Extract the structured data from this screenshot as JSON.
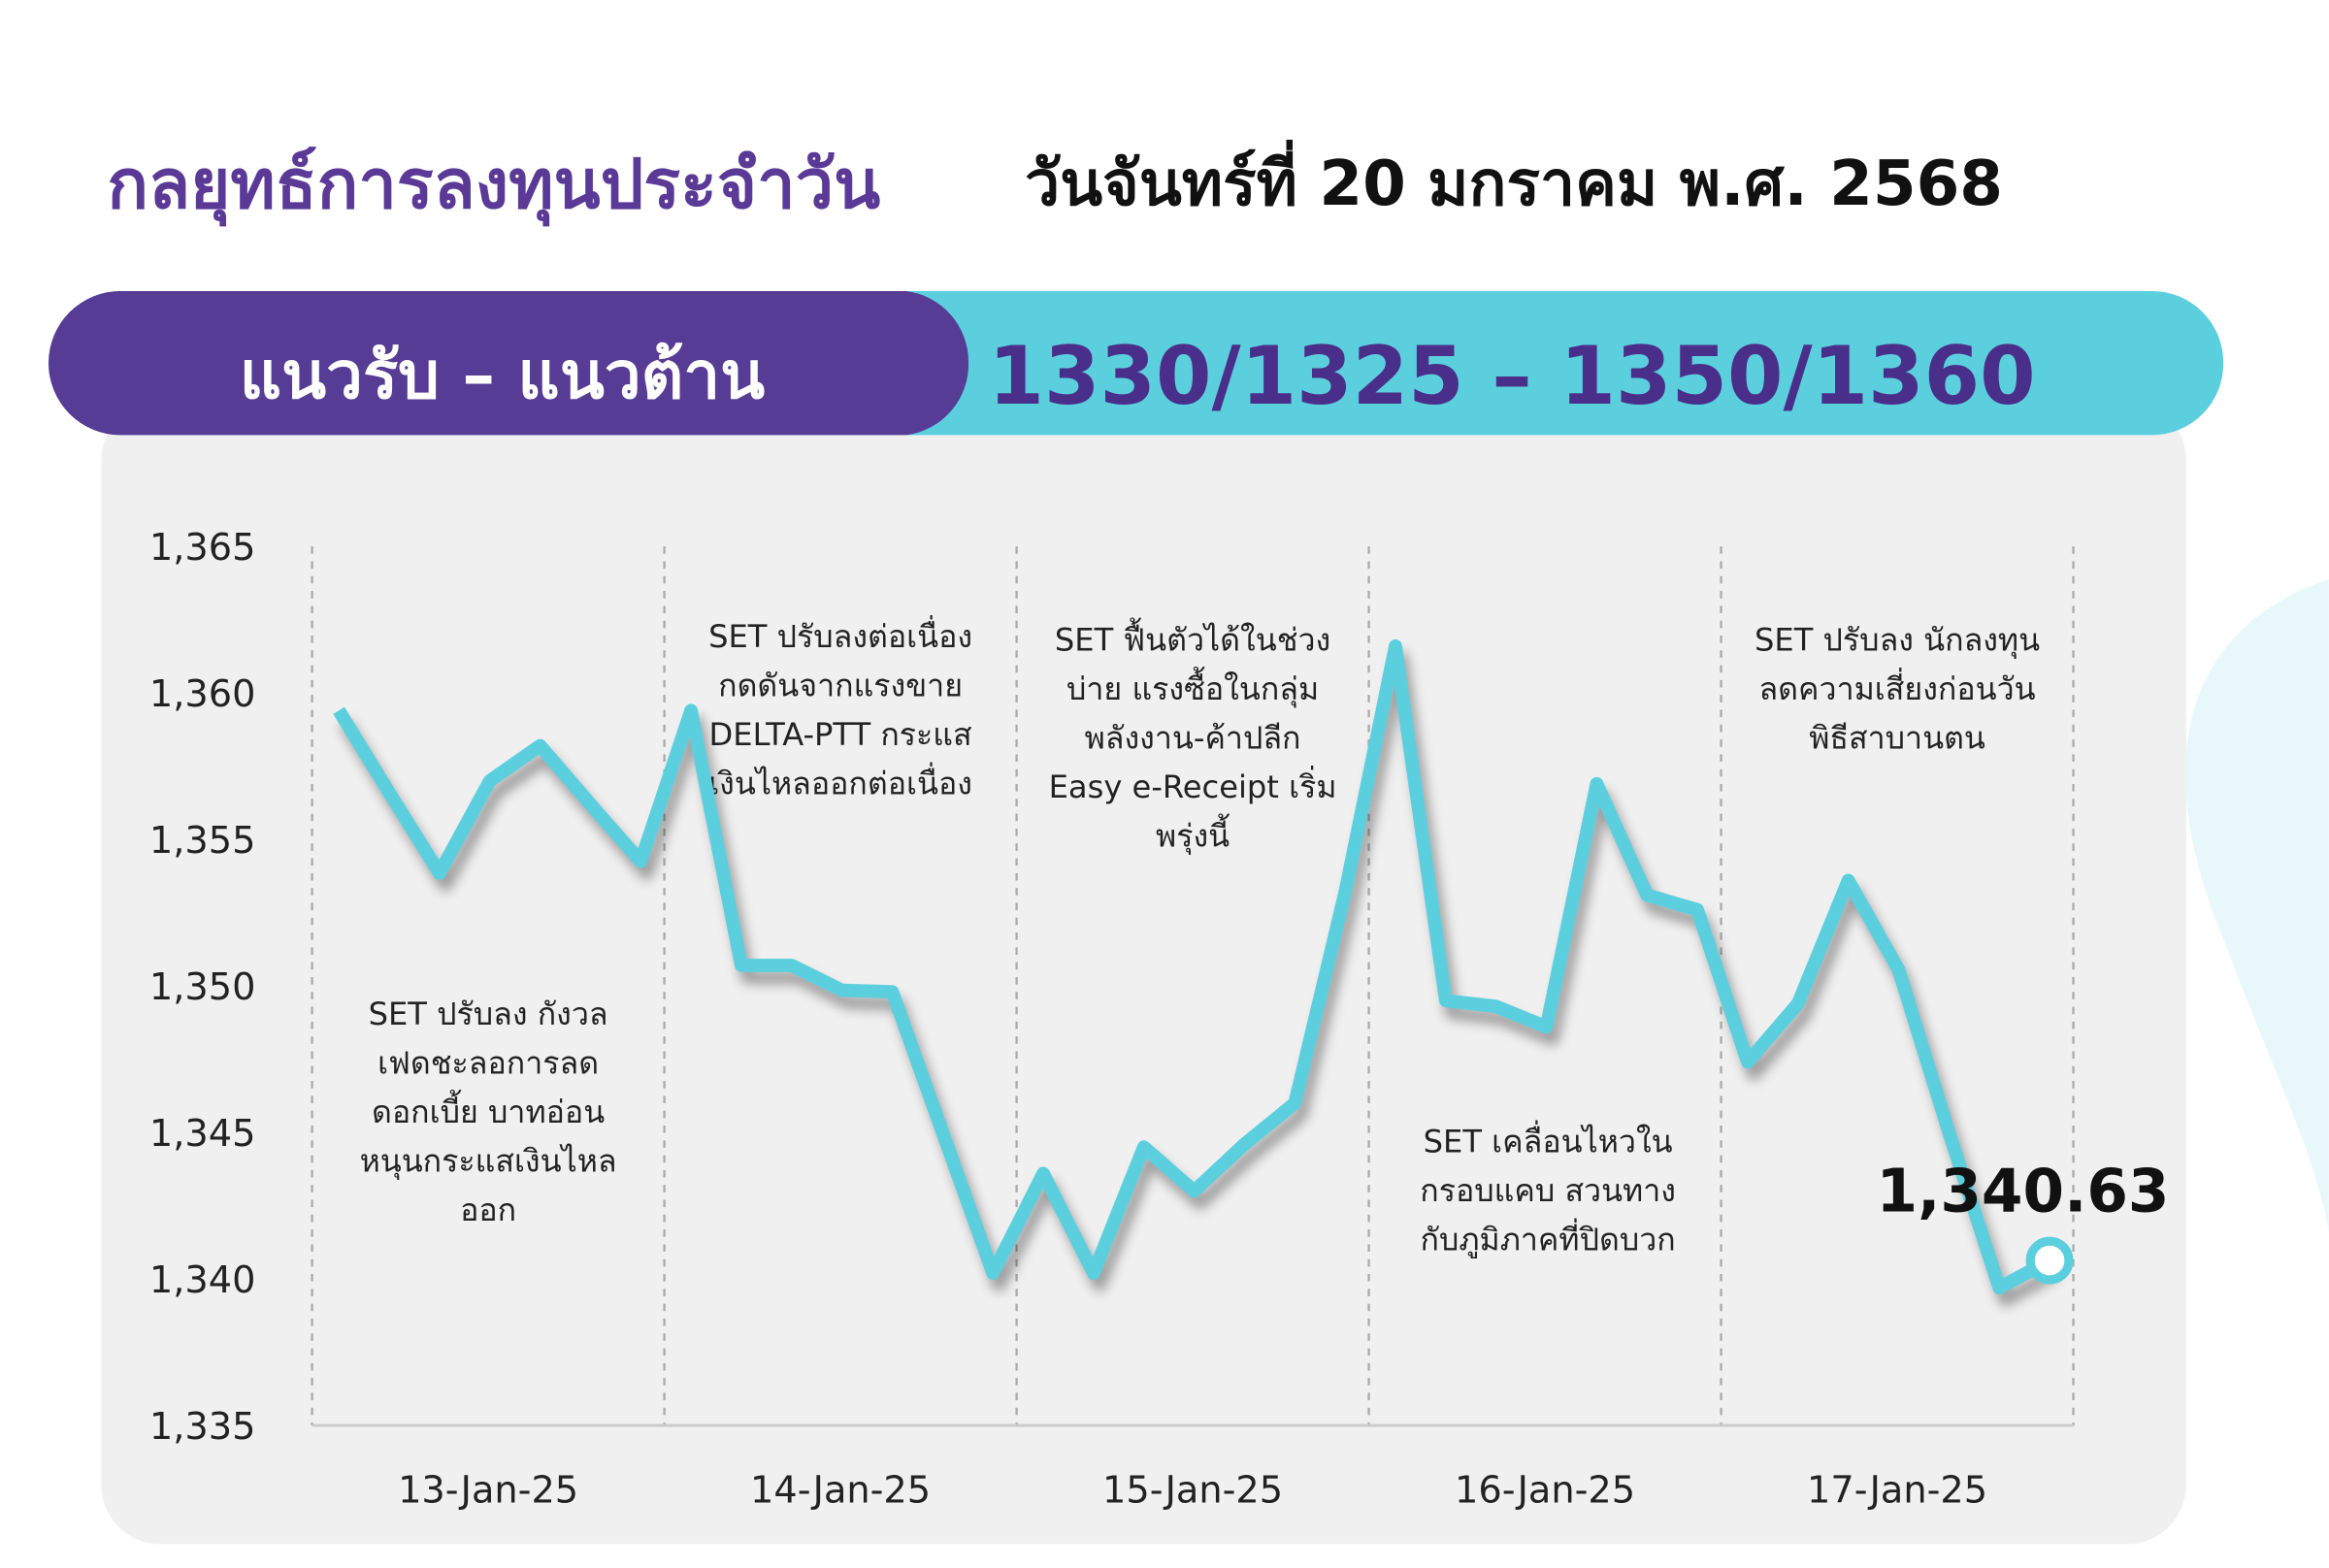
{
  "header": {
    "title": "กลยุทธ์การลงทุนประจำวัน",
    "date": "วันจันทร์ที่ 20 มกราคม พ.ศ. 2568"
  },
  "banner": {
    "label": "แนวรับ – แนวต้าน",
    "value": "1330/1325 – 1350/1360"
  },
  "chart_data": {
    "type": "line",
    "x_labels": [
      "13-Jan-25",
      "14-Jan-25",
      "15-Jan-25",
      "16-Jan-25",
      "17-Jan-25"
    ],
    "series": [
      {
        "color": "#5ccfdf",
        "values": [
          1359.4,
          1356.6,
          1353.85,
          1357.0,
          1358.2,
          1356.2,
          1354.25,
          1359.4,
          1350.7,
          1350.7,
          1349.85,
          1349.8,
          1345.0,
          1340.2,
          1343.6,
          1340.2,
          1344.5,
          1343.0,
          1344.6,
          1346.0,
          1353.2,
          1361.6,
          1349.5,
          1349.3,
          1348.6,
          1356.9,
          1353.1,
          1352.6,
          1347.4,
          1349.4,
          1353.6,
          1350.55,
          1345.0,
          1339.7,
          1340.63
        ]
      }
    ],
    "end_label": "1,340.63",
    "ylim": [
      1335,
      1365
    ],
    "yticks": [
      {
        "value": 1335,
        "label": "1,335"
      },
      {
        "value": 1340,
        "label": "1,340"
      },
      {
        "value": 1345,
        "label": "1,345"
      },
      {
        "value": 1350,
        "label": "1,350"
      },
      {
        "value": 1355,
        "label": "1,355"
      },
      {
        "value": 1360,
        "label": "1,360"
      },
      {
        "value": 1365,
        "label": "1,365"
      }
    ],
    "annotations": [
      [
        "SET ปรับลง กังวล",
        "เฟดชะลอการลด",
        "ดอกเบี้ย บาทอ่อน",
        "หนุนกระแสเงินไหล",
        "ออก"
      ],
      [
        "SET ปรับลงต่อเนื่อง",
        "กดดันจากแรงขาย",
        "DELTA-PTT กระแส",
        "เงินไหลออกต่อเนื่อง"
      ],
      [
        "SET ฟื้นตัวได้ในช่วง",
        "บ่าย แรงซื้อในกลุ่ม",
        "พลังงาน-ค้าปลีก",
        "Easy e-Receipt เริ่ม",
        "พรุ่งนี้"
      ],
      [
        "SET เคลื่อนไหวใน",
        "กรอบแคบ สวนทาง",
        "กับภูมิภาคที่ปิดบวก"
      ],
      [
        "SET ปรับลง นักลงทุน",
        "ลดความเสี่ยงก่อนวัน",
        "พิธีสาบานตน"
      ]
    ]
  }
}
